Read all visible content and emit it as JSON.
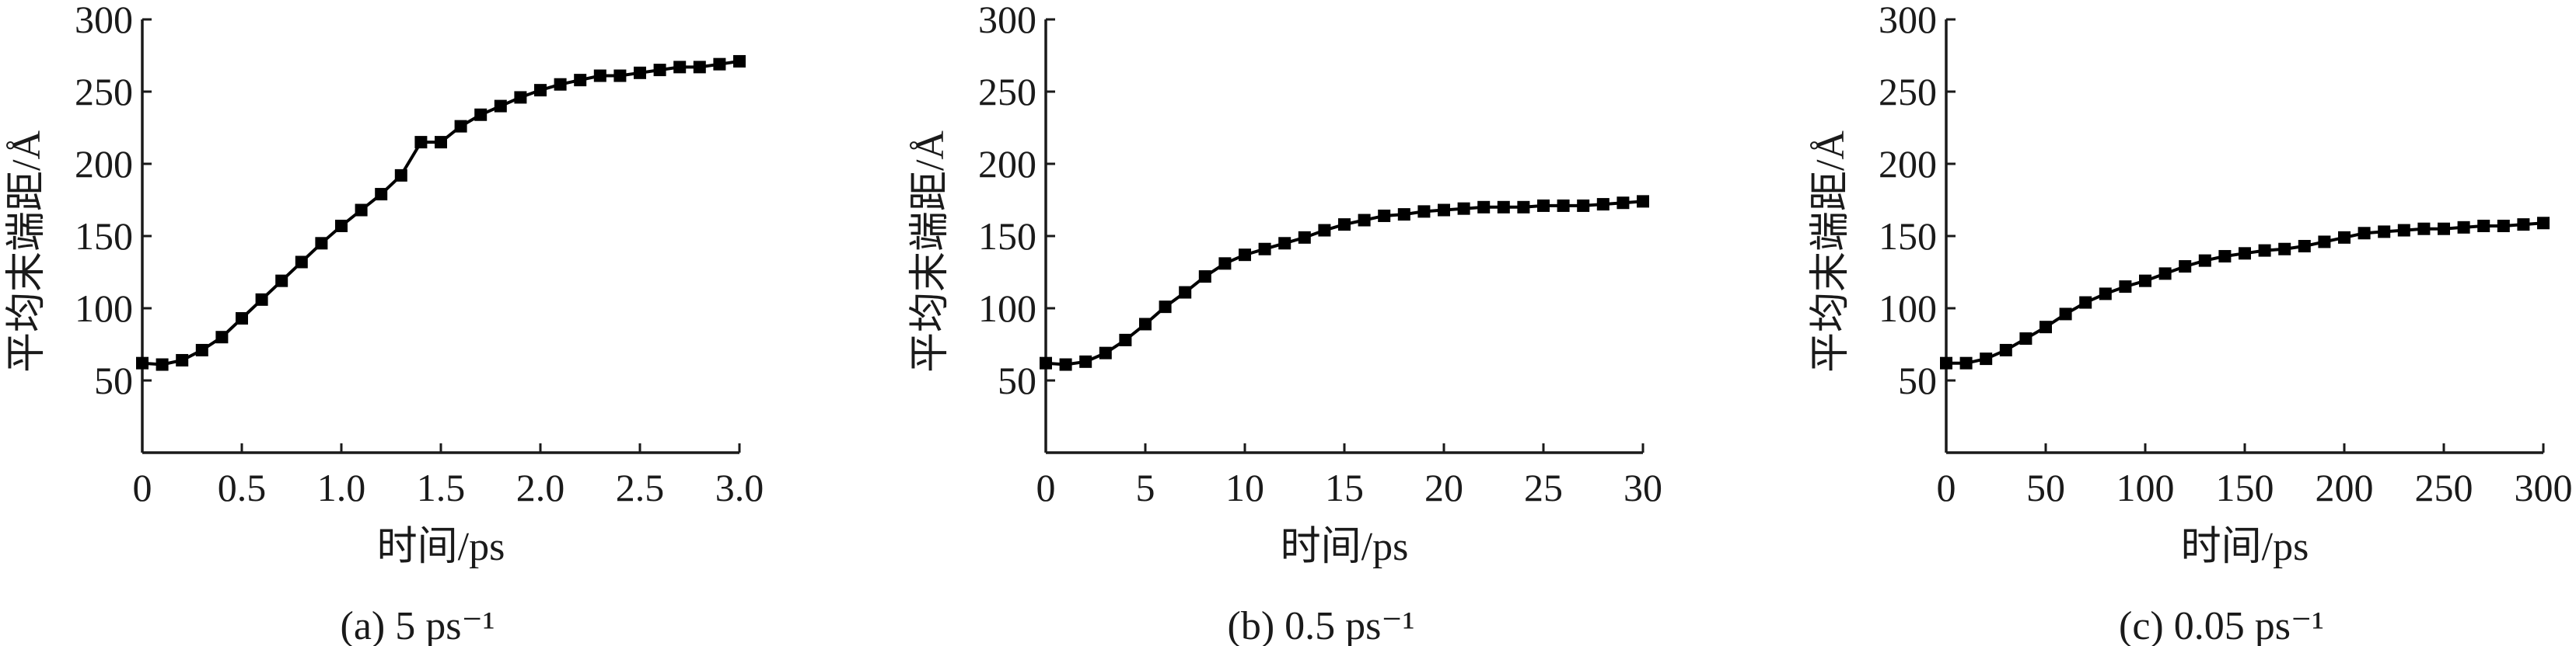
{
  "chart_data": [
    {
      "type": "line",
      "caption": "(a) 5 ps⁻¹",
      "xlabel": "时间/ps",
      "ylabel": "平均末端距/Å",
      "xlim": [
        0,
        3.0
      ],
      "ylim": [
        0,
        300
      ],
      "xticks": [
        0,
        0.5,
        1.0,
        1.5,
        2.0,
        2.5,
        3.0
      ],
      "xtick_labels": [
        "0",
        "0.5",
        "1.0",
        "1.5",
        "2.0",
        "2.5",
        "3.0"
      ],
      "yticks": [
        50,
        100,
        150,
        200,
        250,
        300
      ],
      "ytick_labels": [
        "50",
        "100",
        "150",
        "200",
        "250",
        "300"
      ],
      "x": [
        0,
        0.1,
        0.2,
        0.3,
        0.4,
        0.5,
        0.6,
        0.7,
        0.8,
        0.9,
        1.0,
        1.1,
        1.2,
        1.3,
        1.4,
        1.5,
        1.6,
        1.7,
        1.8,
        1.9,
        2.0,
        2.1,
        2.2,
        2.3,
        2.4,
        2.5,
        2.6,
        2.7,
        2.8,
        2.9,
        3.0
      ],
      "y": [
        62,
        61,
        64,
        71,
        80,
        93,
        106,
        119,
        132,
        145,
        157,
        168,
        179,
        192,
        215,
        215,
        226,
        234,
        240,
        246,
        251,
        255,
        258,
        261,
        261,
        263,
        265,
        267,
        267,
        269,
        271
      ]
    },
    {
      "type": "line",
      "caption": "(b) 0.5 ps⁻¹",
      "xlabel": "时间/ps",
      "ylabel": "平均末端距/Å",
      "xlim": [
        0,
        30
      ],
      "ylim": [
        0,
        300
      ],
      "xticks": [
        0,
        5,
        10,
        15,
        20,
        25,
        30
      ],
      "xtick_labels": [
        "0",
        "5",
        "10",
        "15",
        "20",
        "25",
        "30"
      ],
      "yticks": [
        50,
        100,
        150,
        200,
        250,
        300
      ],
      "ytick_labels": [
        "50",
        "100",
        "150",
        "200",
        "250",
        "300"
      ],
      "x": [
        0,
        1,
        2,
        3,
        4,
        5,
        6,
        7,
        8,
        9,
        10,
        11,
        12,
        13,
        14,
        15,
        16,
        17,
        18,
        19,
        20,
        21,
        22,
        23,
        24,
        25,
        26,
        27,
        28,
        29,
        30
      ],
      "y": [
        62,
        61,
        63,
        69,
        78,
        89,
        101,
        111,
        122,
        131,
        137,
        141,
        145,
        149,
        154,
        158,
        161,
        164,
        165,
        167,
        168,
        169,
        170,
        170,
        170,
        171,
        171,
        171,
        172,
        173,
        174
      ]
    },
    {
      "type": "line",
      "caption": "(c) 0.05 ps⁻¹",
      "xlabel": "时间/ps",
      "ylabel": "平均末端距/Å",
      "xlim": [
        0,
        300
      ],
      "ylim": [
        0,
        300
      ],
      "xticks": [
        0,
        50,
        100,
        150,
        200,
        250,
        300
      ],
      "xtick_labels": [
        "0",
        "50",
        "100",
        "150",
        "200",
        "250",
        "300"
      ],
      "yticks": [
        50,
        100,
        150,
        200,
        250,
        300
      ],
      "ytick_labels": [
        "50",
        "100",
        "150",
        "200",
        "250",
        "300"
      ],
      "x": [
        0,
        10,
        20,
        30,
        40,
        50,
        60,
        70,
        80,
        90,
        100,
        110,
        120,
        130,
        140,
        150,
        160,
        170,
        180,
        190,
        200,
        210,
        220,
        230,
        240,
        250,
        260,
        270,
        280,
        290,
        300
      ],
      "y": [
        62,
        62,
        65,
        71,
        79,
        87,
        96,
        104,
        110,
        115,
        119,
        124,
        129,
        133,
        136,
        138,
        140,
        141,
        143,
        146,
        149,
        152,
        153,
        154,
        155,
        155,
        156,
        157,
        157,
        158,
        159
      ]
    }
  ]
}
